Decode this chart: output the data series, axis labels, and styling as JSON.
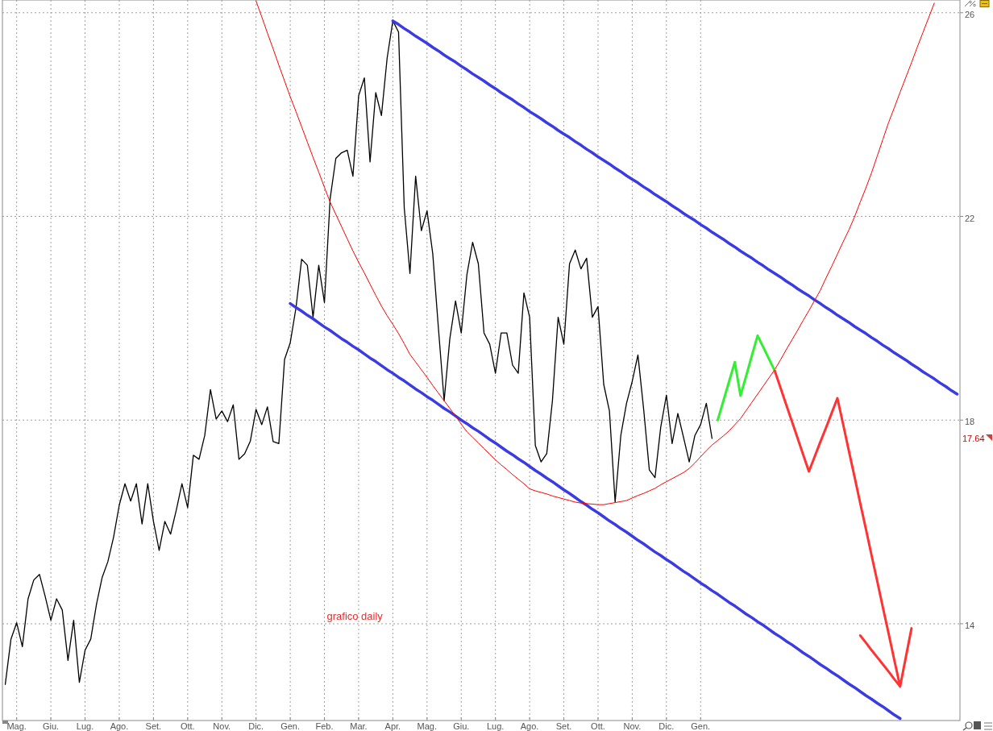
{
  "chart_data": {
    "type": "line",
    "ylim": [
      12.1,
      26.25
    ],
    "yticks": [
      14,
      18,
      22,
      26
    ],
    "grid": true,
    "categories": [
      null,
      null,
      "Mag.",
      null,
      null,
      null,
      null,
      null,
      "Giu.",
      null,
      null,
      null,
      null,
      null,
      "Lug.",
      null,
      null,
      null,
      null,
      null,
      "Ago.",
      null,
      null,
      null,
      null,
      null,
      "Set.",
      null,
      null,
      null,
      null,
      null,
      "Ott.",
      null,
      null,
      null,
      null,
      null,
      "Nov.",
      null,
      null,
      null,
      null,
      null,
      "Dic.",
      null,
      null,
      null,
      null,
      null,
      "Gen.",
      null,
      null,
      null,
      null,
      null,
      "Feb.",
      null,
      null,
      null,
      null,
      null,
      "Mar.",
      null,
      null,
      null,
      null,
      null,
      "Apr.",
      null,
      null,
      null,
      null,
      null,
      "Mag.",
      null,
      null,
      null,
      null,
      null,
      "Giu.",
      null,
      null,
      null,
      null,
      null,
      "Lug.",
      null,
      null,
      null,
      null,
      null,
      "Ago.",
      null,
      null,
      null,
      null,
      null,
      "Set.",
      null,
      null,
      null,
      null,
      null,
      "Ott.",
      null,
      null,
      null,
      null,
      null,
      "Nov.",
      null,
      null,
      null,
      null,
      null,
      "Dic.",
      null,
      null,
      null,
      null,
      null,
      "Gen.",
      null,
      null,
      null,
      null,
      null,
      null,
      null,
      null,
      null,
      null,
      null,
      null,
      null,
      null,
      null,
      null,
      null,
      null,
      null,
      null,
      null,
      null,
      null,
      null,
      null,
      null,
      null,
      null,
      null,
      null,
      null,
      null,
      null,
      null,
      null,
      null,
      null,
      null,
      null,
      null,
      null,
      null,
      null,
      null,
      null
    ],
    "annotations": [
      "grafico daily",
      "17.64"
    ],
    "series": [
      {
        "color": "#000000",
        "values": [
          12.81,
          13.7,
          14.02,
          13.55,
          14.49,
          14.86,
          14.97,
          14.54,
          14.07,
          14.49,
          14.27,
          13.28,
          14.07,
          12.85,
          13.48,
          13.7,
          14.38,
          14.91,
          15.22,
          15.7,
          16.33,
          16.75,
          16.41,
          16.75,
          15.96,
          16.75,
          16.01,
          15.44,
          16.01,
          15.76,
          16.23,
          16.75,
          16.28,
          17.31,
          17.23,
          17.7,
          18.6,
          18.02,
          18.18,
          17.97,
          18.3,
          17.23,
          17.34,
          17.59,
          18.21,
          17.91,
          18.26,
          17.58,
          17.54,
          19.19,
          19.52,
          20.2,
          21.16,
          21.04,
          20.02,
          21.04,
          20.31,
          22.35,
          23.14,
          23.25,
          23.3,
          22.79,
          24.37,
          24.72,
          23.07,
          24.43,
          23.98,
          25.11,
          25.84,
          25.62,
          22.17,
          20.88,
          22.79,
          21.72,
          22.11,
          21.27,
          19.8,
          18.38,
          19.6,
          20.34,
          19.71,
          20.86,
          21.49,
          21.07,
          19.71,
          19.49,
          18.92,
          19.71,
          19.71,
          19.08,
          18.92,
          20.5,
          20.02,
          17.5,
          17.18,
          17.34,
          18.38,
          20.02,
          19.49,
          21.07,
          21.34,
          20.97,
          21.18,
          20.02,
          20.23,
          18.7,
          18.18,
          16.39,
          17.7,
          18.33,
          18.76,
          19.28,
          18.22,
          17.02,
          16.87,
          17.86,
          18.49,
          17.54,
          18.13,
          17.66,
          17.18,
          17.7,
          17.91,
          18.33,
          17.64,
          null,
          null,
          null,
          null,
          null,
          null,
          null,
          null,
          null,
          null,
          null,
          null,
          null,
          null,
          null,
          null,
          null,
          null,
          null,
          null,
          null,
          null,
          null,
          null,
          null,
          null,
          null,
          null,
          null,
          null,
          null,
          null,
          null,
          null,
          null,
          null,
          null,
          null,
          null,
          null,
          null,
          null,
          null
        ]
      },
      {
        "color": "#3b3be3",
        "values": [
          null,
          null,
          null,
          null,
          null,
          null,
          null,
          null,
          null,
          null,
          null,
          null,
          null,
          null,
          null,
          null,
          null,
          null,
          null,
          null,
          null,
          null,
          null,
          null,
          null,
          null,
          null,
          null,
          null,
          null,
          null,
          null,
          null,
          null,
          null,
          null,
          null,
          null,
          null,
          null,
          null,
          null,
          null,
          null,
          null,
          null,
          null,
          null,
          null,
          null,
          null,
          null,
          null,
          null,
          null,
          null,
          null,
          null,
          null,
          null,
          null,
          null,
          null,
          null,
          null,
          null,
          null,
          null,
          25.84,
          25.77,
          25.69,
          25.62,
          25.54,
          25.47,
          25.4,
          25.32,
          25.25,
          25.17,
          25.1,
          25.03,
          24.95,
          24.88,
          24.8,
          24.73,
          24.66,
          24.58,
          24.51,
          24.43,
          24.36,
          24.29,
          24.21,
          24.14,
          24.06,
          23.99,
          23.92,
          23.84,
          23.77,
          23.69,
          23.62,
          23.55,
          23.47,
          23.4,
          23.32,
          23.25,
          23.17,
          23.1,
          23.03,
          22.95,
          22.88,
          22.8,
          22.73,
          22.66,
          22.58,
          22.51,
          22.43,
          22.36,
          22.29,
          22.21,
          22.14,
          22.06,
          21.99,
          21.92,
          21.84,
          21.77,
          21.69,
          21.62,
          21.55,
          21.47,
          21.4,
          21.32,
          21.25,
          21.18,
          21.1,
          21.03,
          20.95,
          20.88,
          20.81,
          20.73,
          20.66,
          20.58,
          20.51,
          20.44,
          20.36,
          20.29,
          20.21,
          20.14,
          20.06,
          19.99,
          19.92,
          19.84,
          19.77,
          19.7,
          19.62,
          19.55,
          19.47,
          19.4,
          19.32,
          19.25,
          19.18,
          19.1,
          19.03,
          18.95,
          18.88,
          18.81,
          18.73,
          18.66,
          18.58,
          18.51
        ]
      },
      {
        "color": "#3b3be3",
        "values": [
          null,
          null,
          null,
          null,
          null,
          null,
          null,
          null,
          null,
          null,
          null,
          null,
          null,
          null,
          null,
          null,
          null,
          null,
          null,
          null,
          null,
          null,
          null,
          null,
          null,
          null,
          null,
          null,
          null,
          null,
          null,
          null,
          null,
          null,
          null,
          null,
          null,
          null,
          null,
          null,
          null,
          null,
          null,
          null,
          null,
          null,
          null,
          null,
          null,
          null,
          20.29,
          20.21,
          20.14,
          20.06,
          19.99,
          19.91,
          19.83,
          19.76,
          19.68,
          19.6,
          19.53,
          19.45,
          19.38,
          19.3,
          19.22,
          19.15,
          19.07,
          18.99,
          18.92,
          18.84,
          18.77,
          18.69,
          18.61,
          18.54,
          18.46,
          18.39,
          18.31,
          18.23,
          18.16,
          18.08,
          18.0,
          17.93,
          17.85,
          17.78,
          17.7,
          17.62,
          17.55,
          17.47,
          17.39,
          17.32,
          17.24,
          17.17,
          17.09,
          17.01,
          16.94,
          16.86,
          16.79,
          16.71,
          16.63,
          16.56,
          16.48,
          16.4,
          16.33,
          16.25,
          16.18,
          16.1,
          16.02,
          15.95,
          15.87,
          15.8,
          15.72,
          15.64,
          15.57,
          15.49,
          15.41,
          15.34,
          15.26,
          15.19,
          15.11,
          15.03,
          14.96,
          14.88,
          14.8,
          14.73,
          14.65,
          14.58,
          14.5,
          14.42,
          14.35,
          14.27,
          14.19,
          14.12,
          14.04,
          13.97,
          13.89,
          13.81,
          13.74,
          13.66,
          13.59,
          13.51,
          13.43,
          13.36,
          13.28,
          13.2,
          13.13,
          13.05,
          12.98,
          12.9,
          12.82,
          12.75,
          12.67,
          12.59,
          12.52,
          12.44,
          12.37,
          12.29,
          12.21,
          12.14,
          null,
          null,
          null,
          null,
          null,
          null,
          null,
          null,
          null,
          null
        ]
      },
      {
        "color": "#ff0000",
        "values": [
          null,
          null,
          null,
          null,
          null,
          null,
          null,
          null,
          null,
          null,
          null,
          null,
          null,
          null,
          null,
          null,
          null,
          null,
          null,
          null,
          null,
          null,
          null,
          null,
          null,
          null,
          null,
          null,
          null,
          null,
          null,
          null,
          null,
          null,
          null,
          null,
          null,
          null,
          null,
          null,
          null,
          null,
          null,
          null,
          26.23,
          25.92,
          25.6,
          25.29,
          24.97,
          24.66,
          24.35,
          24.06,
          23.76,
          23.46,
          23.16,
          22.87,
          22.57,
          22.28,
          22.04,
          21.8,
          21.56,
          21.32,
          21.1,
          20.89,
          20.67,
          20.45,
          20.24,
          20.05,
          19.88,
          19.7,
          19.5,
          19.29,
          19.14,
          18.99,
          18.84,
          18.68,
          18.53,
          18.38,
          18.23,
          18.08,
          17.92,
          17.77,
          17.66,
          17.55,
          17.44,
          17.33,
          17.22,
          17.12,
          17.03,
          16.93,
          16.84,
          16.75,
          16.65,
          16.61,
          16.58,
          16.55,
          16.51,
          16.48,
          16.45,
          16.42,
          16.39,
          16.37,
          16.36,
          16.35,
          16.34,
          16.34,
          16.36,
          16.38,
          16.4,
          16.42,
          16.47,
          16.52,
          16.56,
          16.61,
          16.66,
          16.73,
          16.79,
          16.85,
          16.91,
          16.97,
          17.05,
          17.16,
          17.28,
          17.4,
          17.51,
          17.6,
          17.69,
          17.79,
          17.91,
          18.03,
          18.19,
          18.35,
          18.51,
          18.67,
          18.83,
          18.99,
          19.18,
          19.38,
          19.57,
          19.76,
          19.96,
          20.15,
          20.35,
          20.55,
          20.79,
          21.02,
          21.26,
          21.5,
          21.73,
          21.99,
          22.28,
          22.56,
          22.86,
          23.19,
          23.52,
          23.85,
          24.14,
          24.44,
          24.73,
          25.02,
          25.32,
          25.61,
          25.9,
          26.19,
          null,
          null,
          null,
          null
        ]
      },
      {
        "color": "#33ee33",
        "values": [
          null,
          null,
          null,
          null,
          null,
          null,
          null,
          null,
          null,
          null,
          null,
          null,
          null,
          null,
          null,
          null,
          null,
          null,
          null,
          null,
          null,
          null,
          null,
          null,
          null,
          null,
          null,
          null,
          null,
          null,
          null,
          null,
          null,
          null,
          null,
          null,
          null,
          null,
          null,
          null,
          null,
          null,
          null,
          null,
          null,
          null,
          null,
          null,
          null,
          null,
          null,
          null,
          null,
          null,
          null,
          null,
          null,
          null,
          null,
          null,
          null,
          null,
          null,
          null,
          null,
          null,
          null,
          null,
          null,
          null,
          null,
          null,
          null,
          null,
          null,
          null,
          null,
          null,
          null,
          null,
          null,
          null,
          null,
          null,
          null,
          null,
          null,
          null,
          null,
          null,
          null,
          null,
          null,
          null,
          null,
          null,
          null,
          null,
          null,
          null,
          null,
          null,
          null,
          null,
          null,
          null,
          null,
          null,
          null,
          null,
          null,
          null,
          null,
          null,
          null,
          null,
          null,
          null,
          null,
          null,
          null,
          null,
          null,
          null,
          null,
          18.0,
          18.38,
          18.76,
          19.14,
          18.48,
          18.87,
          19.27,
          19.66,
          19.43,
          19.2,
          18.97,
          null,
          null,
          null,
          null,
          null,
          null,
          null,
          null,
          null,
          null,
          null,
          null,
          null,
          null,
          null,
          null,
          null,
          null,
          null,
          null,
          null,
          null,
          null,
          null,
          null,
          null,
          null,
          null,
          null,
          null,
          null,
          null
        ]
      },
      {
        "color": "#ff3333",
        "values": [
          null,
          null,
          null,
          null,
          null,
          null,
          null,
          null,
          null,
          null,
          null,
          null,
          null,
          null,
          null,
          null,
          null,
          null,
          null,
          null,
          null,
          null,
          null,
          null,
          null,
          null,
          null,
          null,
          null,
          null,
          null,
          null,
          null,
          null,
          null,
          null,
          null,
          null,
          null,
          null,
          null,
          null,
          null,
          null,
          null,
          null,
          null,
          null,
          null,
          null,
          null,
          null,
          null,
          null,
          null,
          null,
          null,
          null,
          null,
          null,
          null,
          null,
          null,
          null,
          null,
          null,
          null,
          null,
          null,
          null,
          null,
          null,
          null,
          null,
          null,
          null,
          null,
          null,
          null,
          null,
          null,
          null,
          null,
          null,
          null,
          null,
          null,
          null,
          null,
          null,
          null,
          null,
          null,
          null,
          null,
          null,
          null,
          null,
          null,
          null,
          null,
          null,
          null,
          null,
          null,
          null,
          null,
          null,
          null,
          null,
          null,
          null,
          null,
          null,
          null,
          null,
          null,
          null,
          null,
          null,
          null,
          null,
          null,
          null,
          null,
          null,
          null,
          null,
          null,
          null,
          null,
          null,
          null,
          null,
          null,
          18.97,
          18.64,
          18.31,
          17.98,
          17.65,
          17.32,
          16.99,
          17.28,
          17.57,
          17.85,
          18.14,
          18.43,
          17.92,
          17.4,
          16.89,
          16.37,
          15.86,
          15.34,
          14.83,
          14.31,
          13.8,
          13.28,
          12.77,
          13.34,
          13.91,
          null,
          null,
          null,
          null,
          null,
          null,
          null,
          null
        ]
      },
      {
        "color": "#ff3333",
        "values": [
          null,
          null,
          null,
          null,
          null,
          null,
          null,
          null,
          null,
          null,
          null,
          null,
          null,
          null,
          null,
          null,
          null,
          null,
          null,
          null,
          null,
          null,
          null,
          null,
          null,
          null,
          null,
          null,
          null,
          null,
          null,
          null,
          null,
          null,
          null,
          null,
          null,
          null,
          null,
          null,
          null,
          null,
          null,
          null,
          null,
          null,
          null,
          null,
          null,
          null,
          null,
          null,
          null,
          null,
          null,
          null,
          null,
          null,
          null,
          null,
          null,
          null,
          null,
          null,
          null,
          null,
          null,
          null,
          null,
          null,
          null,
          null,
          null,
          null,
          null,
          null,
          null,
          null,
          null,
          null,
          null,
          null,
          null,
          null,
          null,
          null,
          null,
          null,
          null,
          null,
          null,
          null,
          null,
          null,
          null,
          null,
          null,
          null,
          null,
          null,
          null,
          null,
          null,
          null,
          null,
          null,
          null,
          null,
          null,
          null,
          null,
          null,
          null,
          null,
          null,
          null,
          null,
          null,
          null,
          null,
          null,
          null,
          null,
          null,
          null,
          null,
          null,
          null,
          null,
          null,
          null,
          null,
          null,
          null,
          null,
          null,
          null,
          null,
          null,
          null,
          null,
          null,
          null,
          null,
          null,
          null,
          null,
          null,
          null,
          null,
          13.77,
          13.63,
          13.48,
          13.34,
          13.2,
          13.06,
          12.91,
          12.77,
          null,
          null,
          null,
          null,
          null,
          null,
          null,
          null,
          null,
          null
        ]
      }
    ]
  }
}
